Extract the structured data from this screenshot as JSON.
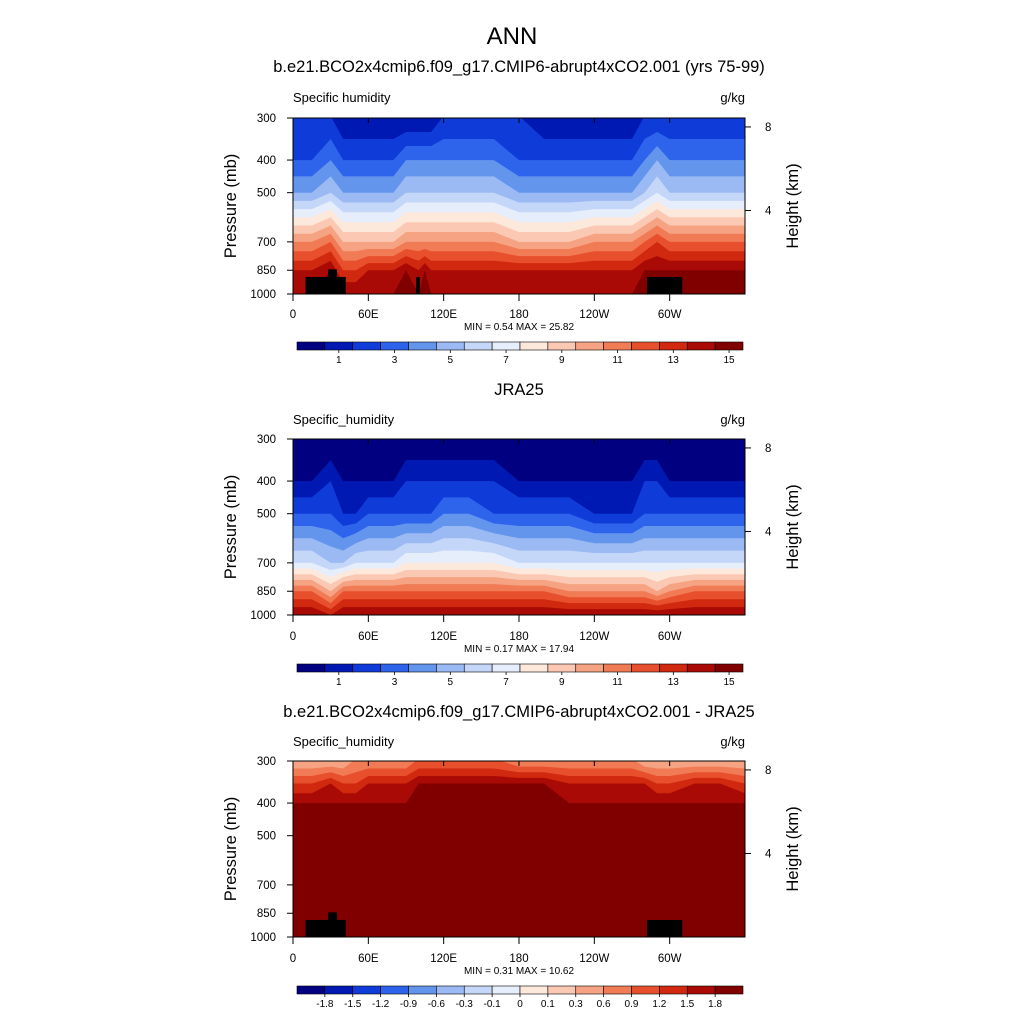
{
  "figure": {
    "title": "ANN"
  },
  "chart_data": [
    {
      "type": "heatmap",
      "title": "b.e21.BCO2x4cmip6.f09_g17.CMIP6-abrupt4xCO2.001 (yrs 75-99)",
      "variable": "Specific humidity",
      "units": "g/kg",
      "ylabel": "Pressure (mb)",
      "y2label": "Height (km)",
      "x_ticks": [
        "0",
        "60E",
        "120E",
        "180",
        "120W",
        "60W"
      ],
      "x_tick_lon": [
        0,
        60,
        120,
        180,
        240,
        300
      ],
      "xlim": [
        0,
        360
      ],
      "y_ticks": [
        300,
        400,
        500,
        700,
        850,
        1000
      ],
      "ylim": [
        1000,
        300
      ],
      "y2_ticks": [
        8,
        4
      ],
      "min": 0.54,
      "max": 25.82,
      "stats_text": "MIN =   0.54  MAX =  25.82",
      "colorbar_labels": [
        "1",
        "3",
        "5",
        "7",
        "9",
        "11",
        "13",
        "15"
      ],
      "colorbar_colors": [
        "#000080",
        "#0019b3",
        "#0f3cd9",
        "#2e64eb",
        "#6495ed",
        "#9bbaf3",
        "#c5d7f8",
        "#e6edfb",
        "#fde8dc",
        "#fbc9b3",
        "#f5a383",
        "#f07b55",
        "#e8502d",
        "#d0290f",
        "#aa0a05",
        "#800000"
      ],
      "field": {
        "levels": [
          300,
          400,
          500,
          700,
          850,
          1000
        ],
        "lon": [
          0,
          15,
          30,
          40,
          50,
          60,
          80,
          90,
          100,
          105,
          110,
          120,
          140,
          160,
          180,
          200,
          220,
          240,
          260,
          270,
          280,
          290,
          300,
          320,
          340,
          360
        ],
        "class_rows": [
          [
            2,
            2,
            2,
            1,
            1,
            1,
            1,
            1,
            1,
            1,
            1,
            2,
            2,
            2,
            2,
            1,
            1,
            1,
            1,
            1,
            2,
            2,
            2,
            2,
            2,
            2
          ],
          [
            3,
            3,
            4,
            3,
            3,
            3,
            3,
            4,
            4,
            4,
            4,
            4,
            4,
            4,
            3,
            3,
            3,
            3,
            3,
            3,
            4,
            5,
            4,
            4,
            4,
            4
          ],
          [
            5,
            5,
            6,
            5,
            5,
            5,
            5,
            6,
            6,
            6,
            6,
            6,
            6,
            6,
            5,
            5,
            5,
            5,
            5,
            5,
            6,
            7,
            6,
            6,
            6,
            6
          ],
          [
            11,
            11,
            12,
            10,
            10,
            10,
            10,
            11,
            11,
            11,
            11,
            11,
            11,
            11,
            10,
            10,
            10,
            11,
            11,
            11,
            12,
            13,
            12,
            12,
            12,
            12
          ],
          [
            14,
            14,
            15,
            13,
            13,
            14,
            14,
            15,
            14,
            15,
            14,
            14,
            14,
            14,
            14,
            14,
            14,
            14,
            14,
            14,
            15,
            15,
            15,
            15,
            15,
            15
          ],
          [
            15,
            15,
            15,
            15,
            15,
            15,
            15,
            15,
            15,
            15,
            15,
            15,
            15,
            15,
            15,
            15,
            15,
            15,
            15,
            15,
            15,
            15,
            15,
            15,
            15,
            15
          ]
        ],
        "land_masks": [
          {
            "lon": [
              10,
              42
            ],
            "p_top": 890
          },
          {
            "lon": [
              28,
              35
            ],
            "p_top": 845
          },
          {
            "lon": [
              98,
              101
            ],
            "p_top": 890
          },
          {
            "lon": [
              282,
              310
            ],
            "p_top": 890
          }
        ]
      }
    },
    {
      "type": "heatmap",
      "title": "JRA25",
      "variable": "Specific_humidity",
      "units": "g/kg",
      "ylabel": "Pressure (mb)",
      "y2label": "Height (km)",
      "x_ticks": [
        "0",
        "60E",
        "120E",
        "180",
        "120W",
        "60W"
      ],
      "x_tick_lon": [
        0,
        60,
        120,
        180,
        240,
        300
      ],
      "xlim": [
        0,
        360
      ],
      "y_ticks": [
        300,
        400,
        500,
        700,
        850,
        1000
      ],
      "ylim": [
        1000,
        300
      ],
      "y2_ticks": [
        8,
        4
      ],
      "min": 0.17,
      "max": 17.94,
      "stats_text": "MIN =   0.17  MAX =  17.94",
      "colorbar_labels": [
        "1",
        "3",
        "5",
        "7",
        "9",
        "11",
        "13",
        "15"
      ],
      "colorbar_colors": [
        "#000080",
        "#0019b3",
        "#0f3cd9",
        "#2e64eb",
        "#6495ed",
        "#9bbaf3",
        "#c5d7f8",
        "#e6edfb",
        "#fde8dc",
        "#fbc9b3",
        "#f5a383",
        "#f07b55",
        "#e8502d",
        "#d0290f",
        "#aa0a05",
        "#800000"
      ],
      "field": {
        "levels": [
          300,
          400,
          500,
          700,
          850,
          1000
        ],
        "lon": [
          0,
          15,
          30,
          40,
          50,
          60,
          80,
          90,
          100,
          105,
          110,
          120,
          140,
          160,
          180,
          200,
          220,
          240,
          260,
          270,
          280,
          290,
          300,
          320,
          340,
          360
        ],
        "class_rows": [
          [
            0,
            0,
            0,
            0,
            0,
            0,
            0,
            0,
            0,
            0,
            0,
            0,
            0,
            0,
            0,
            0,
            0,
            0,
            0,
            0,
            0,
            0,
            0,
            0,
            0,
            0
          ],
          [
            1,
            1,
            2,
            1,
            1,
            1,
            1,
            2,
            2,
            2,
            2,
            2,
            2,
            2,
            1,
            1,
            1,
            1,
            1,
            1,
            2,
            2,
            1,
            1,
            1,
            1
          ],
          [
            3,
            3,
            3,
            2,
            2,
            3,
            3,
            3,
            3,
            3,
            3,
            4,
            4,
            3,
            3,
            3,
            3,
            2,
            2,
            2,
            3,
            3,
            3,
            3,
            3,
            3
          ],
          [
            7,
            7,
            6,
            6,
            7,
            7,
            7,
            8,
            8,
            8,
            8,
            8,
            8,
            8,
            7,
            7,
            7,
            7,
            7,
            7,
            7,
            7,
            7,
            7,
            7,
            7
          ],
          [
            12,
            12,
            10,
            12,
            12,
            12,
            12,
            12,
            12,
            12,
            12,
            12,
            12,
            12,
            12,
            12,
            11,
            11,
            11,
            11,
            11,
            10,
            11,
            12,
            12,
            12
          ],
          [
            15,
            15,
            14,
            15,
            15,
            15,
            15,
            15,
            15,
            15,
            15,
            15,
            15,
            15,
            15,
            15,
            15,
            15,
            15,
            15,
            15,
            15,
            15,
            15,
            15,
            15
          ]
        ],
        "land_masks": []
      }
    },
    {
      "type": "heatmap",
      "title": "b.e21.BCO2x4cmip6.f09_g17.CMIP6-abrupt4xCO2.001 - JRA25",
      "variable": "Specific_humidity",
      "units": "g/kg",
      "ylabel": "Pressure (mb)",
      "y2label": "Height (km)",
      "x_ticks": [
        "0",
        "60E",
        "120E",
        "180",
        "120W",
        "60W"
      ],
      "x_tick_lon": [
        0,
        60,
        120,
        180,
        240,
        300
      ],
      "xlim": [
        0,
        360
      ],
      "y_ticks": [
        300,
        400,
        500,
        700,
        850,
        1000
      ],
      "ylim": [
        1000,
        300
      ],
      "y2_ticks": [
        8,
        4
      ],
      "min": 0.31,
      "max": 10.62,
      "stats_text": "MIN =   0.31  MAX =  10.62",
      "colorbar_labels": [
        "-1.8",
        "-1.5",
        "-1.2",
        "-0.9",
        "-0.6",
        "-0.3",
        "-0.1",
        "0",
        "0.1",
        "0.3",
        "0.6",
        "0.9",
        "1.2",
        "1.5",
        "1.8"
      ],
      "colorbar_colors": [
        "#000080",
        "#0019b3",
        "#0f3cd9",
        "#2e64eb",
        "#6495ed",
        "#9bbaf3",
        "#c5d7f8",
        "#e6edfb",
        "#fde8dc",
        "#fbc9b3",
        "#f5a383",
        "#f07b55",
        "#e8502d",
        "#d0290f",
        "#aa0a05",
        "#800000"
      ],
      "field": {
        "levels": [
          300,
          350,
          400,
          500,
          700,
          850,
          1000
        ],
        "lon": [
          0,
          15,
          30,
          40,
          50,
          60,
          80,
          90,
          100,
          105,
          110,
          120,
          140,
          160,
          180,
          200,
          220,
          240,
          260,
          270,
          280,
          290,
          300,
          320,
          340,
          360
        ],
        "class_rows": [
          [
            10,
            10,
            10,
            10,
            11,
            11,
            11,
            11,
            12,
            12,
            12,
            12,
            12,
            12,
            11,
            11,
            11,
            11,
            11,
            11,
            10,
            10,
            10,
            10,
            10,
            10
          ],
          [
            13,
            13,
            14,
            13,
            13,
            14,
            14,
            14,
            15,
            15,
            15,
            15,
            15,
            15,
            15,
            15,
            14,
            14,
            14,
            14,
            14,
            13,
            13,
            14,
            14,
            13
          ],
          [
            15,
            15,
            15,
            15,
            15,
            15,
            15,
            15,
            15,
            15,
            15,
            15,
            15,
            15,
            15,
            15,
            15,
            15,
            15,
            15,
            15,
            15,
            15,
            15,
            15,
            15
          ],
          [
            15,
            15,
            15,
            15,
            15,
            15,
            15,
            15,
            15,
            15,
            15,
            15,
            15,
            15,
            15,
            15,
            15,
            15,
            15,
            15,
            15,
            15,
            15,
            15,
            15,
            15
          ],
          [
            15,
            15,
            15,
            15,
            15,
            15,
            15,
            15,
            15,
            15,
            15,
            15,
            15,
            15,
            15,
            15,
            15,
            15,
            15,
            15,
            15,
            15,
            15,
            15,
            15,
            15
          ],
          [
            15,
            15,
            15,
            15,
            15,
            15,
            15,
            15,
            15,
            15,
            15,
            15,
            15,
            15,
            15,
            15,
            15,
            15,
            15,
            15,
            15,
            15,
            15,
            15,
            15,
            15
          ],
          [
            15,
            15,
            15,
            15,
            15,
            15,
            15,
            15,
            15,
            15,
            15,
            15,
            15,
            15,
            15,
            15,
            15,
            15,
            15,
            15,
            15,
            15,
            15,
            15,
            15,
            15
          ]
        ],
        "land_masks": [
          {
            "lon": [
              10,
              42
            ],
            "p_top": 890
          },
          {
            "lon": [
              28,
              35
            ],
            "p_top": 845
          },
          {
            "lon": [
              282,
              310
            ],
            "p_top": 890
          }
        ]
      }
    }
  ]
}
